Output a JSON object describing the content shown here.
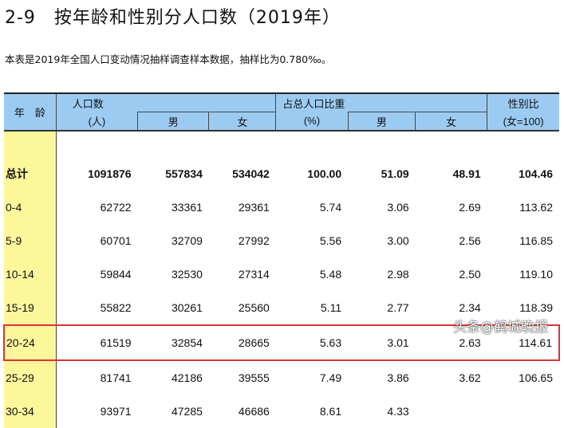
{
  "title": "2-9　按年龄和性别分人口数（2019年）",
  "note": "本表是2019年全国人口变动情况抽样调查样本数据，抽样比为0.780‰。",
  "header": {
    "age": "年　龄",
    "pop": "人口数",
    "pop_unit": "(人)",
    "male": "男",
    "female": "女",
    "share": "占总人口比重",
    "share_unit": "(%)",
    "ratio": "性别比",
    "ratio_unit": "(女=100)"
  },
  "rows": [
    [
      "总计",
      "1091876",
      "557834",
      "534042",
      "100.00",
      "51.09",
      "48.91",
      "104.46"
    ],
    [
      "0-4",
      "62722",
      "33361",
      "29361",
      "5.74",
      "3.06",
      "2.69",
      "113.62"
    ],
    [
      "5-9",
      "60701",
      "32709",
      "27992",
      "5.56",
      "3.00",
      "2.56",
      "116.85"
    ],
    [
      "10-14",
      "59844",
      "32530",
      "27314",
      "5.48",
      "2.98",
      "2.50",
      "119.10"
    ],
    [
      "15-19",
      "55822",
      "30261",
      "25560",
      "5.11",
      "2.77",
      "2.34",
      "118.39"
    ],
    [
      "20-24",
      "61519",
      "32854",
      "28665",
      "5.63",
      "3.01",
      "2.63",
      "114.61"
    ],
    [
      "25-29",
      "81741",
      "42186",
      "39555",
      "7.49",
      "3.86",
      "3.62",
      "106.65"
    ],
    [
      "30-34",
      "93971",
      "47285",
      "46686",
      "8.61",
      "4.33",
      "",
      ""
    ]
  ],
  "highlight_row": "20-24",
  "watermark": "头条@鹤城晚报",
  "colors": {
    "header": "#9ccbf2",
    "age_column": "#fdf79c",
    "highlight": "#d33333"
  }
}
